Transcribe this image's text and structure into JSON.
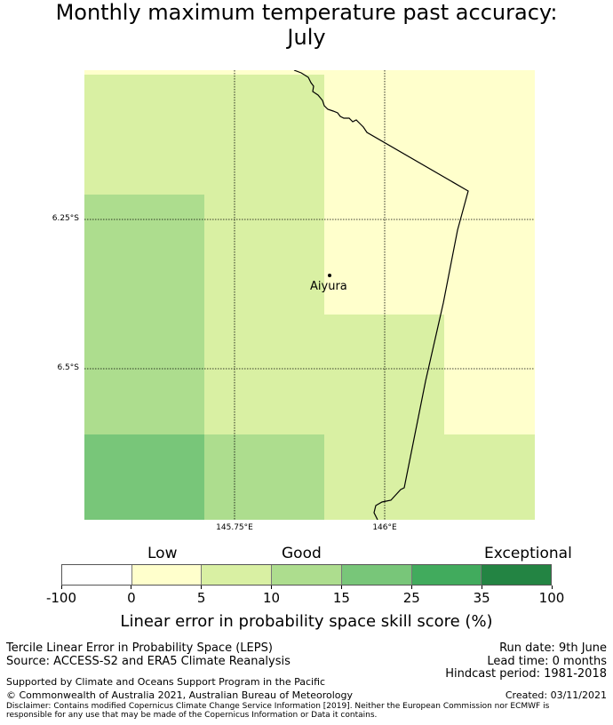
{
  "title_line1": "Monthly maximum temperature past accuracy:",
  "title_line2": "July",
  "map": {
    "latitude_labels": [
      "6.25°S",
      "6.5°S"
    ],
    "longitude_labels": [
      "145.75°E",
      "146°E"
    ],
    "place": {
      "name": "Aiyura"
    }
  },
  "legend": {
    "categories": [
      "Low",
      "Good",
      "Exceptional"
    ],
    "ticks": [
      "-100",
      "0",
      "5",
      "10",
      "15",
      "25",
      "35",
      "100"
    ],
    "colors": [
      "#ffffff",
      "#ffffcc",
      "#d9f0a3",
      "#addd8e",
      "#78c679",
      "#41ab5d",
      "#238443"
    ],
    "label": "Linear error in probability space skill score (%)"
  },
  "footer": {
    "method": "Tercile Linear Error in Probability Space (LEPS)",
    "source": "Source: ACCESS-S2 and ERA5 Climate Reanalysis",
    "run_date": "Run date: 9th June",
    "lead_time": "Lead time: 0 months",
    "hindcast": "Hindcast period: 1981-2018",
    "support": "Supported by Climate and Oceans Support Program in the Pacific",
    "copyright": "© Commonwealth of Australia 2021, Australian Bureau of Meteorology",
    "created": "Created: 03/11/2021",
    "disclaimer_line1": "Disclaimer: Contains modified Copernicus Climate Change Service Information [2019]. Neither the European Commission nor ECMWF is",
    "disclaimer_line2": "responsible for any use that may be made of the Copernicus Information or Data it contains."
  }
}
